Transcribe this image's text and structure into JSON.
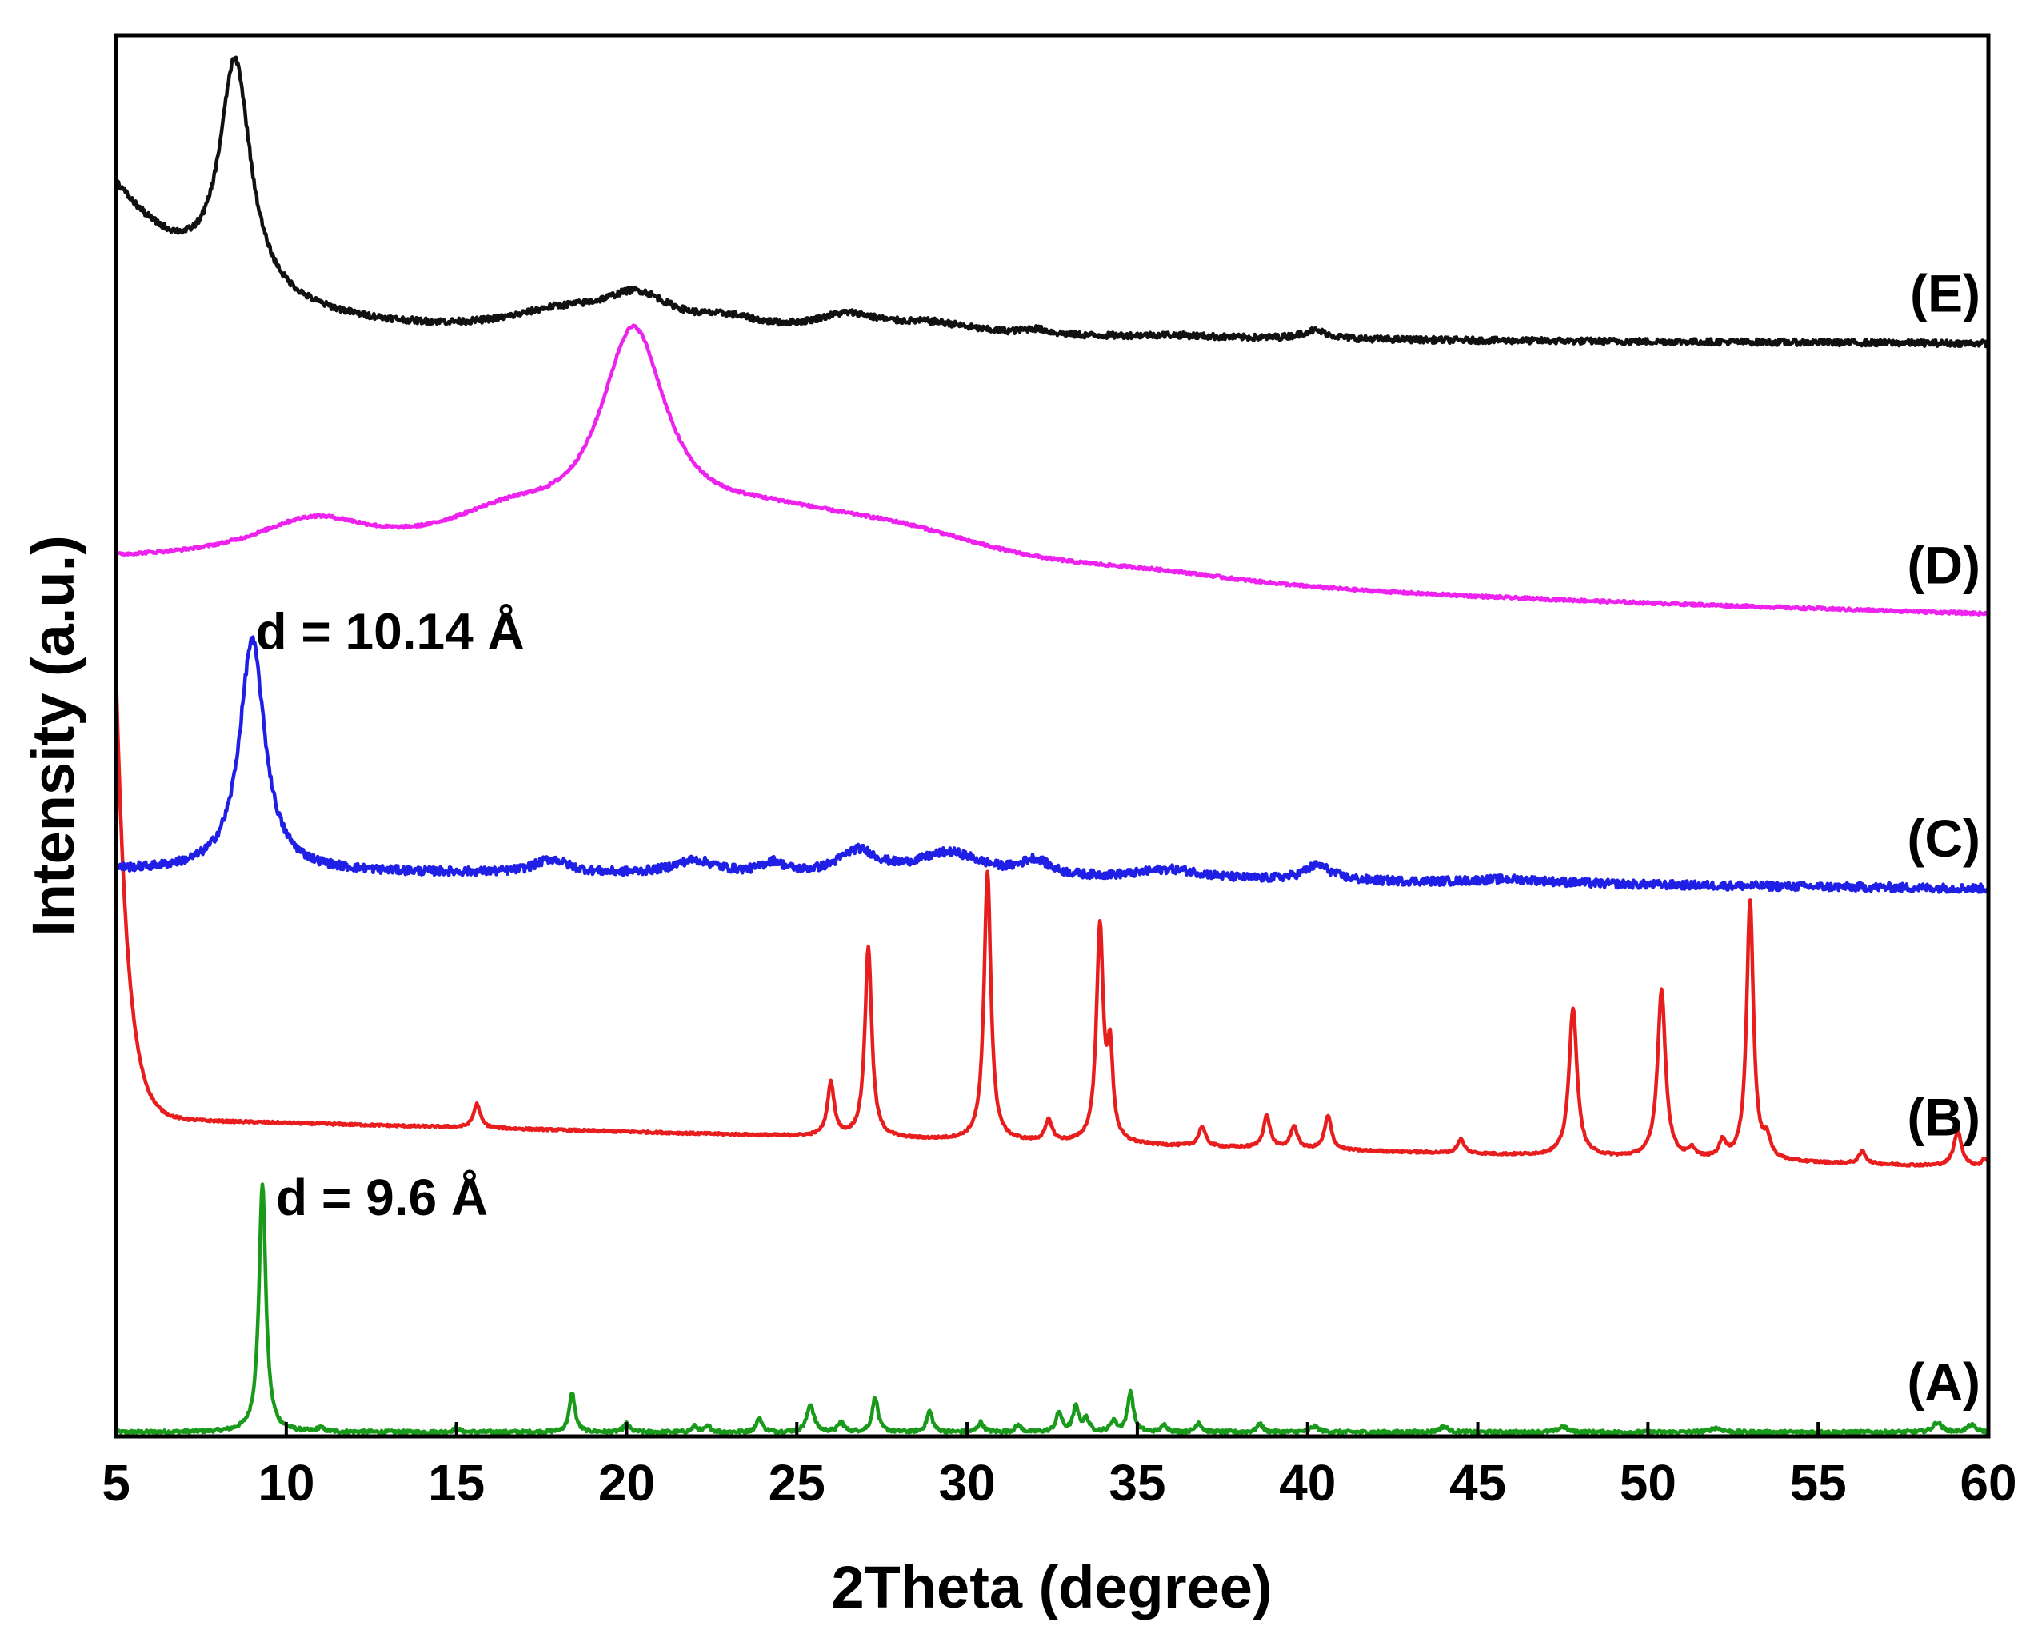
{
  "chart_data": {
    "type": "line",
    "title": "",
    "xlabel": "2Theta (degree)",
    "ylabel": "Intensity (a.u.)",
    "xlim": [
      5,
      60
    ],
    "ylim": [
      0,
      100
    ],
    "xticks": [
      "5",
      "10",
      "15",
      "20",
      "25",
      "30",
      "35",
      "40",
      "45",
      "50",
      "55",
      "60"
    ],
    "grid": false,
    "legend": "none",
    "series": [
      {
        "name": "(A)",
        "color": "#1a9a1a",
        "baseline": 0.3,
        "baseline_end": 0.3,
        "noise": 0.12,
        "start_spike": null,
        "peaks": [
          [
            9.3,
            17.8,
            0.12
          ],
          [
            11.0,
            0.3,
            0.1
          ],
          [
            15.0,
            0.3,
            0.1
          ],
          [
            18.4,
            2.8,
            0.1
          ],
          [
            20.0,
            0.6,
            0.1
          ],
          [
            22.0,
            0.4,
            0.1
          ],
          [
            22.4,
            0.4,
            0.1
          ],
          [
            23.9,
            1.0,
            0.1
          ],
          [
            25.4,
            2.0,
            0.12
          ],
          [
            26.3,
            0.7,
            0.1
          ],
          [
            27.3,
            2.5,
            0.1
          ],
          [
            28.9,
            1.5,
            0.1
          ],
          [
            30.4,
            0.7,
            0.1
          ],
          [
            31.5,
            0.5,
            0.1
          ],
          [
            32.7,
            1.4,
            0.1
          ],
          [
            33.2,
            1.8,
            0.1
          ],
          [
            33.5,
            0.9,
            0.1
          ],
          [
            34.3,
            0.8,
            0.1
          ],
          [
            34.8,
            2.9,
            0.1
          ],
          [
            35.8,
            0.5,
            0.1
          ],
          [
            36.8,
            0.7,
            0.1
          ],
          [
            38.6,
            0.6,
            0.1
          ],
          [
            40.2,
            0.4,
            0.15
          ],
          [
            44.0,
            0.4,
            0.15
          ],
          [
            47.5,
            0.4,
            0.15
          ],
          [
            52.0,
            0.3,
            0.2
          ],
          [
            58.5,
            0.7,
            0.15
          ],
          [
            59.5,
            0.5,
            0.15
          ]
        ]
      },
      {
        "name": "(B)",
        "color": "#e81e1e",
        "baseline": 22.7,
        "baseline_end": 19.2,
        "noise": 0.08,
        "start_spike": [
          5,
          32.0,
          0.35
        ],
        "peaks": [
          [
            15.6,
            1.7,
            0.12
          ],
          [
            26.0,
            3.8,
            0.12
          ],
          [
            27.1,
            13.6,
            0.12
          ],
          [
            30.6,
            19.2,
            0.12
          ],
          [
            32.4,
            1.5,
            0.12
          ],
          [
            33.9,
            15.3,
            0.12
          ],
          [
            34.2,
            6.0,
            0.1
          ],
          [
            36.9,
            1.4,
            0.12
          ],
          [
            38.8,
            2.3,
            0.12
          ],
          [
            39.6,
            1.6,
            0.12
          ],
          [
            40.6,
            2.4,
            0.12
          ],
          [
            44.5,
            1.0,
            0.12
          ],
          [
            47.8,
            10.6,
            0.14
          ],
          [
            50.4,
            12.0,
            0.14
          ],
          [
            51.3,
            0.6,
            0.12
          ],
          [
            52.2,
            1.2,
            0.12
          ],
          [
            53.0,
            18.5,
            0.12
          ],
          [
            53.5,
            1.3,
            0.12
          ],
          [
            56.3,
            0.9,
            0.12
          ],
          [
            59.1,
            2.5,
            0.14
          ],
          [
            59.9,
            0.6,
            0.1
          ]
        ]
      },
      {
        "name": "(C)",
        "color": "#1f1fe6",
        "baseline": 40.4,
        "baseline_end": 39.1,
        "noise": 0.3,
        "start_spike": null,
        "peaks": [
          [
            9.0,
            16.5,
            0.45
          ],
          [
            17.8,
            1.0,
            0.6
          ],
          [
            22.0,
            1.0,
            0.8
          ],
          [
            24.3,
            0.8,
            0.4
          ],
          [
            26.8,
            1.7,
            0.7
          ],
          [
            29.5,
            1.7,
            1.2
          ],
          [
            32.0,
            1.1,
            0.5
          ],
          [
            36.0,
            0.7,
            1.2
          ],
          [
            40.3,
            1.1,
            0.5
          ],
          [
            46.0,
            0.3,
            1.5
          ]
        ]
      },
      {
        "name": "(D)",
        "color": "#ee22ee",
        "baseline": 62.2,
        "baseline_end": 58.6,
        "noise": 0.1,
        "start_spike": null,
        "peaks": [
          [
            10.8,
            2.8,
            2.2
          ],
          [
            16.5,
            2.9,
            2.5
          ],
          [
            20.2,
            15.0,
            1.2
          ],
          [
            24.0,
            3.0,
            3.5
          ],
          [
            28.0,
            2.6,
            4.0
          ],
          [
            35.5,
            0.7,
            3.5
          ]
        ]
      },
      {
        "name": "(E)",
        "color": "#111111",
        "baseline": 78.7,
        "baseline_end": 78.0,
        "noise": 0.22,
        "start_spike": [
          5,
          10.5,
          3.0
        ],
        "peaks": [
          [
            8.5,
            16.3,
            0.55
          ],
          [
            18.0,
            1.3,
            1.8
          ],
          [
            20.3,
            2.5,
            1.3
          ],
          [
            23.0,
            0.8,
            1.2
          ],
          [
            26.5,
            1.3,
            1.2
          ],
          [
            29.0,
            0.8,
            1.5
          ],
          [
            32.0,
            0.4,
            0.5
          ],
          [
            36.0,
            0.2,
            1.5
          ],
          [
            40.2,
            0.6,
            0.5
          ]
        ]
      }
    ],
    "annotations": [
      {
        "text": "d = 10.14 Å",
        "x": 9.1,
        "y": 56.2
      },
      {
        "text": "d = 9.6 Å",
        "x": 9.7,
        "y": 15.8
      }
    ]
  }
}
